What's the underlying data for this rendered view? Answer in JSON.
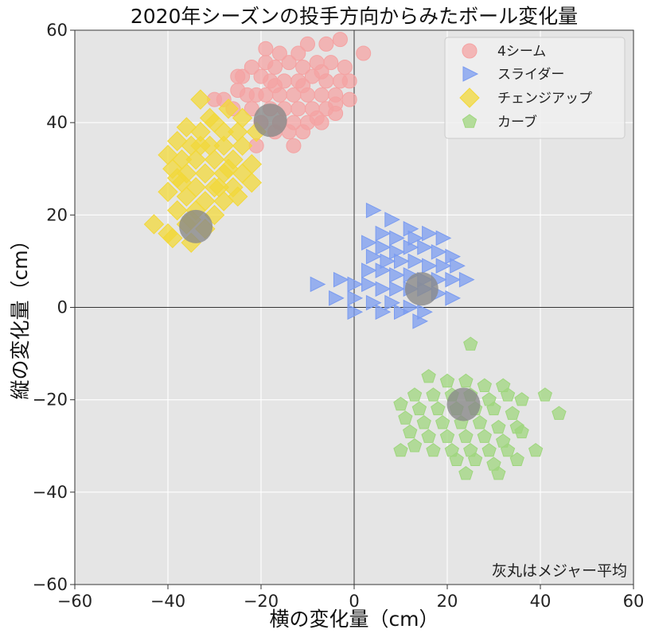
{
  "chart_data": {
    "type": "scatter",
    "title": "2020年シーズンの投手方向からみたボール変化量",
    "xlabel": "横の変化量（cm）",
    "ylabel": "縦の変化量（cm）",
    "xlim": [
      -60,
      60
    ],
    "ylim": [
      -60,
      60
    ],
    "xticks": [
      -60,
      -40,
      -20,
      0,
      20,
      40,
      60
    ],
    "yticks": [
      -60,
      -40,
      -20,
      0,
      20,
      40,
      60
    ],
    "grid": true,
    "zero_lines": true,
    "legend_position": "top-right",
    "annotation": "灰丸はメジャー平均",
    "colors": {
      "background": "#e5e5e5",
      "grid": "#ffffff",
      "four_seam": "#f4a3a3",
      "slider": "#7b9cf0",
      "changeup": "#f2d83a",
      "curve": "#9fd67e",
      "league_average": "#8a8a8a"
    },
    "series": [
      {
        "name": "4シーム",
        "marker": "circle",
        "color": "#f4a3a3",
        "points": [
          [
            -19,
            56
          ],
          [
            -16,
            55
          ],
          [
            -12,
            55
          ],
          [
            -10,
            57
          ],
          [
            -6,
            57
          ],
          [
            -3,
            58
          ],
          [
            -17,
            52
          ],
          [
            -14,
            53
          ],
          [
            -11,
            52
          ],
          [
            -8,
            53
          ],
          [
            -5,
            53
          ],
          [
            -2,
            52
          ],
          [
            -22,
            52
          ],
          [
            -20,
            50
          ],
          [
            -18,
            49
          ],
          [
            -15,
            49
          ],
          [
            -12,
            49
          ],
          [
            -9,
            50
          ],
          [
            -6,
            49
          ],
          [
            -3,
            49
          ],
          [
            -1,
            49
          ],
          [
            -24,
            50
          ],
          [
            -25,
            47
          ],
          [
            -23,
            46
          ],
          [
            -21,
            46
          ],
          [
            -19,
            46
          ],
          [
            -16,
            46
          ],
          [
            -13,
            46
          ],
          [
            -10,
            46
          ],
          [
            -7,
            46
          ],
          [
            -4,
            46
          ],
          [
            -1,
            45
          ],
          [
            -28,
            45
          ],
          [
            -26,
            43
          ],
          [
            -22,
            43
          ],
          [
            -18,
            43
          ],
          [
            -15,
            43
          ],
          [
            -12,
            43
          ],
          [
            -9,
            43
          ],
          [
            -6,
            43
          ],
          [
            -4,
            42
          ],
          [
            -20,
            40
          ],
          [
            -16,
            40
          ],
          [
            -13,
            40
          ],
          [
            -10,
            40
          ],
          [
            -7,
            40
          ],
          [
            -14,
            38
          ],
          [
            -11,
            38
          ],
          [
            -21,
            35
          ],
          [
            -13,
            35
          ],
          [
            -17,
            48
          ],
          [
            -7,
            51
          ],
          [
            2,
            55
          ],
          [
            -4,
            44
          ],
          [
            -30,
            45
          ],
          [
            -25,
            50
          ],
          [
            -17,
            38
          ],
          [
            -11,
            48
          ],
          [
            -19,
            53
          ],
          [
            -8,
            41
          ]
        ]
      },
      {
        "name": "スライダー",
        "marker": "triangle-right",
        "color": "#7b9cf0",
        "points": [
          [
            4,
            21
          ],
          [
            8,
            19
          ],
          [
            12,
            17
          ],
          [
            6,
            16
          ],
          [
            9,
            15
          ],
          [
            13,
            15
          ],
          [
            16,
            16
          ],
          [
            19,
            15
          ],
          [
            3,
            14
          ],
          [
            6,
            13
          ],
          [
            9,
            12
          ],
          [
            12,
            13
          ],
          [
            15,
            13
          ],
          [
            18,
            12
          ],
          [
            21,
            11
          ],
          [
            4,
            11
          ],
          [
            7,
            10
          ],
          [
            10,
            10
          ],
          [
            13,
            10
          ],
          [
            16,
            9
          ],
          [
            19,
            9
          ],
          [
            22,
            9
          ],
          [
            3,
            8
          ],
          [
            6,
            8
          ],
          [
            9,
            7
          ],
          [
            12,
            7
          ],
          [
            15,
            6
          ],
          [
            18,
            6
          ],
          [
            21,
            6
          ],
          [
            24,
            6
          ],
          [
            -8,
            5
          ],
          [
            -3,
            6
          ],
          [
            0,
            5
          ],
          [
            3,
            5
          ],
          [
            6,
            4
          ],
          [
            9,
            4
          ],
          [
            12,
            4
          ],
          [
            15,
            4
          ],
          [
            18,
            3
          ],
          [
            21,
            2
          ],
          [
            -4,
            2
          ],
          [
            0,
            2
          ],
          [
            4,
            1
          ],
          [
            8,
            1
          ],
          [
            12,
            0
          ],
          [
            15,
            -1
          ],
          [
            0,
            -1
          ],
          [
            6,
            -1
          ],
          [
            10,
            -1
          ],
          [
            14,
            -3
          ]
        ]
      },
      {
        "name": "チェンジアップ",
        "marker": "diamond",
        "color": "#f2d83a",
        "points": [
          [
            -33,
            45
          ],
          [
            -27,
            43
          ],
          [
            -24,
            41
          ],
          [
            -30,
            40
          ],
          [
            -36,
            39
          ],
          [
            -33,
            38
          ],
          [
            -28,
            38
          ],
          [
            -25,
            38
          ],
          [
            -38,
            36
          ],
          [
            -35,
            35
          ],
          [
            -31,
            35
          ],
          [
            -28,
            35
          ],
          [
            -24,
            35
          ],
          [
            -40,
            33
          ],
          [
            -37,
            32
          ],
          [
            -34,
            32
          ],
          [
            -30,
            32
          ],
          [
            -26,
            32
          ],
          [
            -22,
            31
          ],
          [
            -39,
            30
          ],
          [
            -36,
            29
          ],
          [
            -32,
            29
          ],
          [
            -28,
            29
          ],
          [
            -24,
            29
          ],
          [
            -37,
            27
          ],
          [
            -34,
            26
          ],
          [
            -30,
            26
          ],
          [
            -26,
            26
          ],
          [
            -22,
            27
          ],
          [
            -40,
            25
          ],
          [
            -36,
            24
          ],
          [
            -32,
            23
          ],
          [
            -28,
            23
          ],
          [
            -25,
            24
          ],
          [
            -38,
            21
          ],
          [
            -34,
            21
          ],
          [
            -30,
            20
          ],
          [
            -36,
            18
          ],
          [
            -32,
            17
          ],
          [
            -40,
            16
          ],
          [
            -43,
            18
          ],
          [
            -39,
            15
          ],
          [
            -35,
            14
          ],
          [
            -29,
            26
          ],
          [
            -31,
            41
          ],
          [
            -21,
            38
          ],
          [
            -35,
            19
          ],
          [
            -27,
            30
          ],
          [
            -33,
            35
          ],
          [
            -38,
            28
          ]
        ]
      },
      {
        "name": "カーブ",
        "marker": "pentagon",
        "color": "#9fd67e",
        "points": [
          [
            25,
            -8
          ],
          [
            16,
            -15
          ],
          [
            20,
            -16
          ],
          [
            24,
            -16
          ],
          [
            28,
            -17
          ],
          [
            32,
            -17
          ],
          [
            13,
            -19
          ],
          [
            17,
            -19
          ],
          [
            21,
            -19
          ],
          [
            25,
            -19
          ],
          [
            29,
            -20
          ],
          [
            33,
            -19
          ],
          [
            36,
            -20
          ],
          [
            41,
            -19
          ],
          [
            10,
            -21
          ],
          [
            14,
            -22
          ],
          [
            18,
            -22
          ],
          [
            22,
            -22
          ],
          [
            26,
            -22
          ],
          [
            30,
            -22
          ],
          [
            34,
            -23
          ],
          [
            11,
            -24
          ],
          [
            15,
            -25
          ],
          [
            19,
            -25
          ],
          [
            23,
            -25
          ],
          [
            27,
            -25
          ],
          [
            31,
            -26
          ],
          [
            35,
            -26
          ],
          [
            44,
            -23
          ],
          [
            12,
            -27
          ],
          [
            16,
            -28
          ],
          [
            20,
            -28
          ],
          [
            24,
            -28
          ],
          [
            28,
            -28
          ],
          [
            32,
            -29
          ],
          [
            36,
            -27
          ],
          [
            13,
            -30
          ],
          [
            17,
            -31
          ],
          [
            21,
            -31
          ],
          [
            25,
            -31
          ],
          [
            29,
            -31
          ],
          [
            33,
            -31
          ],
          [
            10,
            -31
          ],
          [
            22,
            -33
          ],
          [
            26,
            -33
          ],
          [
            30,
            -34
          ],
          [
            35,
            -33
          ],
          [
            39,
            -31
          ],
          [
            24,
            -36
          ],
          [
            31,
            -36
          ]
        ]
      }
    ],
    "league_averages": [
      {
        "x": -18,
        "y": 40.5
      },
      {
        "x": -34,
        "y": 17.5
      },
      {
        "x": 14.5,
        "y": 4
      },
      {
        "x": 23.5,
        "y": -21
      }
    ]
  }
}
